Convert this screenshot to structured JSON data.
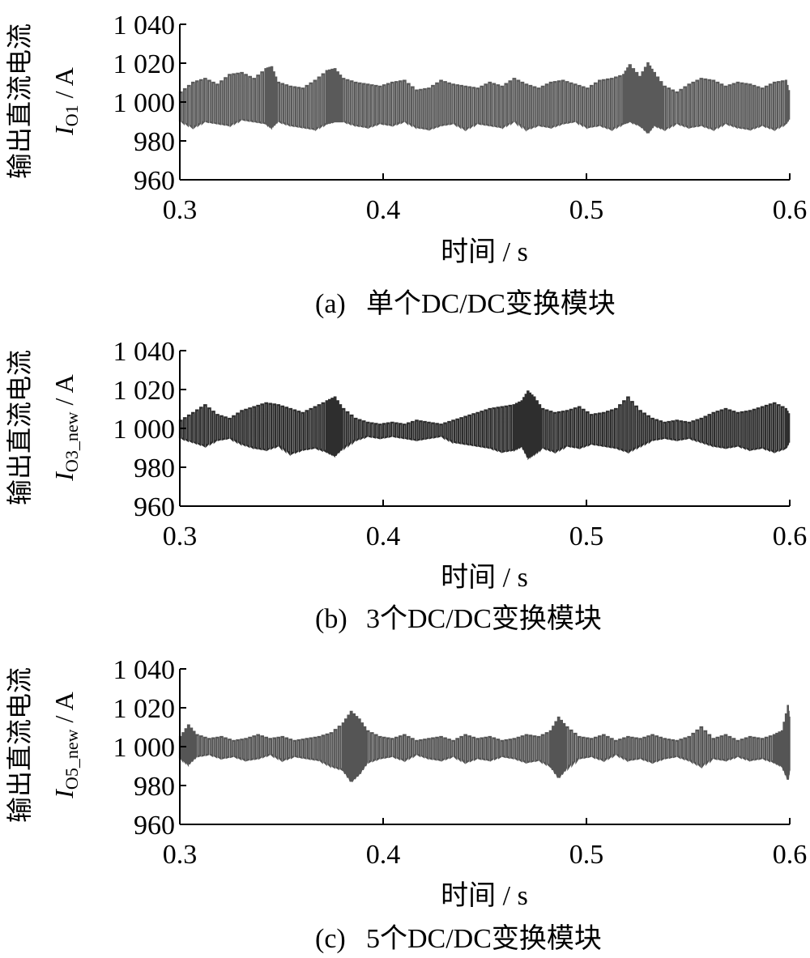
{
  "chart_data": [
    {
      "type": "line",
      "panel_label": "(a)",
      "caption": "单个DC/DC变换模块",
      "xlabel": "时间 / s",
      "ylabel_cn": "输出直流电流",
      "ylabel_symbol": "I",
      "ylabel_subscript": "O1",
      "ylabel_unit": " / A",
      "xlim": [
        0.3,
        0.6
      ],
      "ylim": [
        960,
        1040
      ],
      "x_ticks": [
        "0.3",
        "0.4",
        "0.5",
        "0.6"
      ],
      "y_ticks": [
        "1 040",
        "1 020",
        "1 000",
        "980",
        "960"
      ],
      "series_color": "#5a5a5a",
      "series": [
        {
          "x": [
            0.3,
            0.306,
            0.312,
            0.318,
            0.324,
            0.33,
            0.336,
            0.342,
            0.345,
            0.348,
            0.354,
            0.36,
            0.366,
            0.372,
            0.376,
            0.38,
            0.386,
            0.392,
            0.398,
            0.404,
            0.41,
            0.416,
            0.422,
            0.428,
            0.434,
            0.44,
            0.446,
            0.452,
            0.458,
            0.464,
            0.47,
            0.476,
            0.482,
            0.488,
            0.494,
            0.5,
            0.506,
            0.512,
            0.518,
            0.521,
            0.526,
            0.53,
            0.533,
            0.538,
            0.544,
            0.55,
            0.556,
            0.562,
            0.568,
            0.574,
            0.58,
            0.586,
            0.592,
            0.598,
            0.6
          ],
          "y_high": [
            1005,
            1010,
            1012,
            1009,
            1014,
            1015,
            1012,
            1017,
            1018,
            1010,
            1008,
            1007,
            1011,
            1016,
            1017,
            1012,
            1010,
            1009,
            1008,
            1010,
            1011,
            1006,
            1007,
            1011,
            1009,
            1008,
            1007,
            1010,
            1008,
            1012,
            1009,
            1007,
            1010,
            1011,
            1009,
            1007,
            1011,
            1012,
            1014,
            1019,
            1013,
            1020,
            1015,
            1008,
            1005,
            1009,
            1012,
            1011,
            1008,
            1010,
            1009,
            1007,
            1010,
            1011,
            1003
          ],
          "y_low": [
            990,
            987,
            990,
            989,
            988,
            991,
            990,
            989,
            987,
            990,
            988,
            987,
            986,
            989,
            990,
            990,
            988,
            987,
            989,
            988,
            990,
            987,
            986,
            988,
            989,
            986,
            989,
            988,
            987,
            990,
            986,
            988,
            987,
            989,
            990,
            987,
            988,
            986,
            989,
            990,
            988,
            984,
            988,
            986,
            989,
            987,
            988,
            986,
            989,
            987,
            986,
            988,
            986,
            989,
            992
          ]
        }
      ]
    },
    {
      "type": "line",
      "panel_label": "(b)",
      "caption": "3个DC/DC变换模块",
      "xlabel": "时间 / s",
      "ylabel_cn": "输出直流电流",
      "ylabel_symbol": "I",
      "ylabel_subscript": "O3_new",
      "ylabel_unit": " / A",
      "xlim": [
        0.3,
        0.6
      ],
      "ylim": [
        960,
        1040
      ],
      "x_ticks": [
        "0.3",
        "0.4",
        "0.5",
        "0.6"
      ],
      "y_ticks": [
        "1 040",
        "1 020",
        "1 000",
        "980",
        "960"
      ],
      "series_color": "#2e2e2e",
      "series": [
        {
          "x": [
            0.3,
            0.306,
            0.312,
            0.318,
            0.324,
            0.33,
            0.336,
            0.342,
            0.348,
            0.354,
            0.36,
            0.366,
            0.372,
            0.376,
            0.38,
            0.386,
            0.392,
            0.398,
            0.404,
            0.41,
            0.416,
            0.422,
            0.428,
            0.434,
            0.44,
            0.446,
            0.452,
            0.458,
            0.464,
            0.468,
            0.471,
            0.474,
            0.478,
            0.484,
            0.49,
            0.496,
            0.502,
            0.508,
            0.514,
            0.52,
            0.526,
            0.532,
            0.538,
            0.544,
            0.55,
            0.556,
            0.562,
            0.568,
            0.574,
            0.58,
            0.586,
            0.592,
            0.598,
            0.6
          ],
          "y_high": [
            1004,
            1008,
            1012,
            1007,
            1005,
            1009,
            1011,
            1013,
            1012,
            1010,
            1008,
            1011,
            1014,
            1016,
            1010,
            1005,
            1003,
            1002,
            1003,
            1002,
            1004,
            1003,
            1002,
            1004,
            1006,
            1008,
            1010,
            1011,
            1012,
            1014,
            1019,
            1016,
            1010,
            1008,
            1009,
            1011,
            1007,
            1008,
            1010,
            1016,
            1009,
            1005,
            1003,
            1004,
            1003,
            1005,
            1008,
            1010,
            1008,
            1009,
            1011,
            1013,
            1010,
            1006
          ],
          "y_low": [
            995,
            993,
            991,
            994,
            995,
            992,
            990,
            989,
            991,
            987,
            989,
            990,
            988,
            986,
            990,
            994,
            996,
            995,
            996,
            995,
            994,
            995,
            996,
            993,
            992,
            991,
            990,
            988,
            989,
            991,
            985,
            987,
            990,
            988,
            991,
            990,
            992,
            991,
            990,
            988,
            991,
            994,
            995,
            994,
            995,
            993,
            991,
            990,
            991,
            989,
            990,
            988,
            990,
            994
          ]
        }
      ]
    },
    {
      "type": "line",
      "panel_label": "(c)",
      "caption": "5个DC/DC变换模块",
      "xlabel": "时间 / s",
      "ylabel_cn": "输出直流电流",
      "ylabel_symbol": "I",
      "ylabel_subscript": "O5_new",
      "ylabel_unit": " / A",
      "xlim": [
        0.3,
        0.6
      ],
      "ylim": [
        960,
        1040
      ],
      "x_ticks": [
        "0.3",
        "0.4",
        "0.5",
        "0.6"
      ],
      "y_ticks": [
        "1 040",
        "1 020",
        "1 000",
        "980",
        "960"
      ],
      "series_color": "#555555",
      "series": [
        {
          "x": [
            0.3,
            0.304,
            0.308,
            0.314,
            0.32,
            0.326,
            0.332,
            0.338,
            0.344,
            0.35,
            0.356,
            0.362,
            0.368,
            0.374,
            0.38,
            0.384,
            0.388,
            0.392,
            0.398,
            0.404,
            0.41,
            0.416,
            0.422,
            0.428,
            0.434,
            0.44,
            0.446,
            0.452,
            0.458,
            0.464,
            0.47,
            0.476,
            0.482,
            0.486,
            0.49,
            0.496,
            0.502,
            0.508,
            0.514,
            0.52,
            0.526,
            0.532,
            0.538,
            0.544,
            0.55,
            0.556,
            0.562,
            0.568,
            0.574,
            0.58,
            0.586,
            0.592,
            0.596,
            0.599,
            0.6
          ],
          "y_high": [
            1005,
            1011,
            1006,
            1004,
            1005,
            1003,
            1004,
            1006,
            1004,
            1005,
            1003,
            1004,
            1005,
            1007,
            1012,
            1018,
            1014,
            1008,
            1005,
            1004,
            1006,
            1003,
            1004,
            1005,
            1003,
            1006,
            1004,
            1005,
            1003,
            1004,
            1006,
            1005,
            1008,
            1015,
            1010,
            1005,
            1004,
            1006,
            1003,
            1005,
            1004,
            1006,
            1004,
            1003,
            1005,
            1010,
            1004,
            1006,
            1003,
            1005,
            1004,
            1006,
            1008,
            1021,
            1012
          ],
          "y_low": [
            994,
            991,
            995,
            996,
            994,
            995,
            993,
            994,
            996,
            993,
            995,
            994,
            993,
            990,
            988,
            982,
            986,
            992,
            994,
            995,
            993,
            996,
            994,
            993,
            995,
            992,
            994,
            993,
            995,
            994,
            992,
            993,
            990,
            984,
            989,
            994,
            995,
            993,
            996,
            993,
            994,
            992,
            994,
            995,
            993,
            990,
            994,
            993,
            995,
            993,
            994,
            992,
            990,
            983,
            990
          ]
        }
      ]
    }
  ]
}
